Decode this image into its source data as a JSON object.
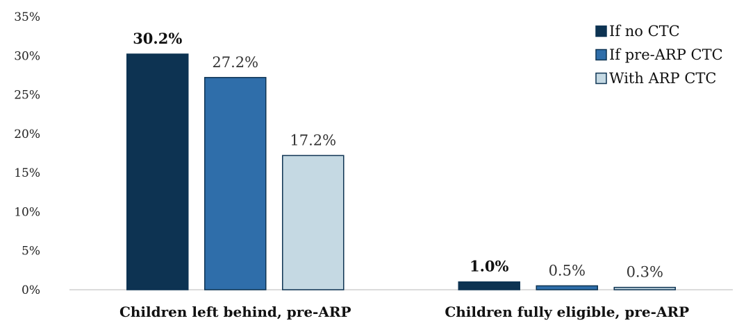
{
  "chart_data": {
    "type": "bar",
    "categories": [
      "Children left behind, pre-ARP",
      "Children fully eligible, pre-ARP"
    ],
    "series": [
      {
        "name": "If no CTC",
        "values": [
          30.2,
          1.0
        ],
        "labels": [
          "30.2%",
          "1.0%"
        ],
        "color": "#0d3352"
      },
      {
        "name": "If pre-ARP CTC",
        "values": [
          27.2,
          0.5
        ],
        "labels": [
          "27.2%",
          "0.5%"
        ],
        "color": "#2f6eaa"
      },
      {
        "name": "With ARP CTC",
        "values": [
          17.2,
          0.3
        ],
        "labels": [
          "17.2%",
          "0.3%"
        ],
        "color": "#c5d9e3"
      }
    ],
    "y_ticks": [
      "0%",
      "5%",
      "10%",
      "15%",
      "20%",
      "25%",
      "30%",
      "35%"
    ],
    "ylim": [
      0,
      35
    ],
    "title": "",
    "xlabel": "",
    "ylabel": "",
    "grid": false,
    "legend_position": "top-right"
  }
}
